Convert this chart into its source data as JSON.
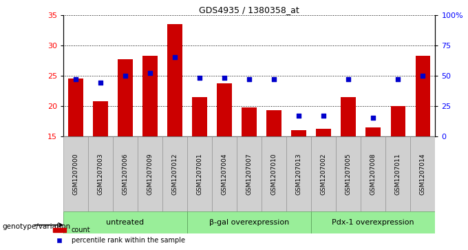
{
  "title": "GDS4935 / 1380358_at",
  "samples": [
    "GSM1207000",
    "GSM1207003",
    "GSM1207006",
    "GSM1207009",
    "GSM1207012",
    "GSM1207001",
    "GSM1207004",
    "GSM1207007",
    "GSM1207010",
    "GSM1207013",
    "GSM1207002",
    "GSM1207005",
    "GSM1207008",
    "GSM1207011",
    "GSM1207014"
  ],
  "count_values": [
    24.5,
    20.8,
    27.7,
    28.3,
    33.5,
    21.5,
    23.7,
    19.7,
    19.3,
    16.0,
    16.2,
    21.5,
    16.5,
    20.0,
    28.3
  ],
  "percentile_values": [
    47,
    44,
    50,
    52,
    65,
    48,
    48,
    47,
    47,
    17,
    17,
    47,
    15,
    47,
    50
  ],
  "groups": [
    {
      "label": "untreated",
      "start": 0,
      "end": 5
    },
    {
      "label": "β-gal overexpression",
      "start": 5,
      "end": 10
    },
    {
      "label": "Pdx-1 overexpression",
      "start": 10,
      "end": 15
    }
  ],
  "ylim_left": [
    15,
    35
  ],
  "ylim_right": [
    0,
    100
  ],
  "yticks_left": [
    15,
    20,
    25,
    30,
    35
  ],
  "yticks_right": [
    0,
    25,
    50,
    75,
    100
  ],
  "yticklabels_right": [
    "0",
    "25",
    "50",
    "75",
    "100%"
  ],
  "bar_color": "#cc0000",
  "dot_color": "#0000cc",
  "bar_width": 0.6,
  "background_color": "#ffffff",
  "plot_bg_color": "#ffffff",
  "group_bg_color": "#99ee99",
  "sample_bg_color": "#d0d0d0",
  "genotype_label": "genotype/variation"
}
